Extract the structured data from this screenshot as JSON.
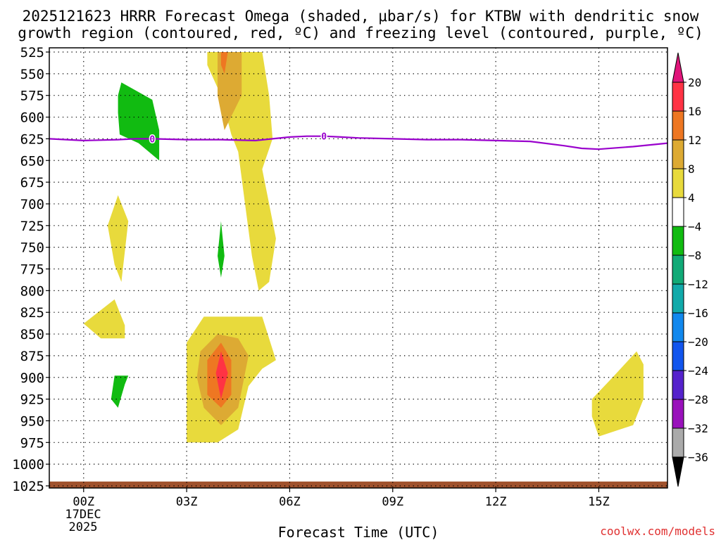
{
  "chart_data": {
    "type": "contour",
    "title_line1": "2025121623 HRRR Forecast Omega (shaded, μbar/s) for KTBW with dendritic snow",
    "title_line2": "growth region (contoured, red, ºC) and freezing level (contoured, purple, ºC)",
    "xlabel": "Forecast Time (UTC)",
    "ylabel": "",
    "credit": "coolwx.com/models",
    "y_ticks": [
      "525",
      "550",
      "575",
      "600",
      "625",
      "650",
      "675",
      "700",
      "725",
      "750",
      "775",
      "800",
      "825",
      "850",
      "875",
      "900",
      "925",
      "950",
      "975",
      "1000",
      "1025"
    ],
    "y_levels": [
      525,
      550,
      575,
      600,
      625,
      650,
      675,
      700,
      725,
      750,
      775,
      800,
      825,
      850,
      875,
      900,
      925,
      950,
      975,
      1000,
      1025
    ],
    "x_ticks": [
      "00Z",
      "03Z",
      "06Z",
      "09Z",
      "12Z",
      "15Z"
    ],
    "x_tick_hours": [
      0,
      3,
      6,
      9,
      12,
      15
    ],
    "x_start_labels": [
      "17DEC",
      "2025"
    ],
    "xlim": [
      -1,
      17
    ],
    "ylim": [
      1025,
      525
    ],
    "colorbar_labels": [
      "20",
      "16",
      "12",
      "8",
      "4",
      "−4",
      "−8",
      "−12",
      "−16",
      "−20",
      "−24",
      "−28",
      "−32",
      "−36"
    ],
    "colorbar_values": [
      20,
      16,
      12,
      8,
      4,
      -4,
      -8,
      -12,
      -16,
      -20,
      -24,
      -28,
      -32,
      -36
    ],
    "colorbar_colors": [
      "#ff3344",
      "#ee7722",
      "#ddaa33",
      "#e8da3c",
      "#ffffff",
      "#11bb11",
      "#11aa77",
      "#11aaaa",
      "#1188ee",
      "#1155ee",
      "#5522cc",
      "#9911bb",
      "#aaaaaa"
    ],
    "colorbar_top_color": "#e0157a",
    "colorbar_bottom_color": "#000000",
    "freezing_level_label": "0",
    "freezing_level_color": "#9900cc",
    "ground_color": "#a0522d",
    "freezing_level": {
      "hours": [
        -1,
        0,
        1,
        1.5,
        2,
        3,
        4,
        5,
        6,
        6.5,
        7,
        7.5,
        8,
        9,
        10,
        11,
        12,
        13,
        14,
        14.5,
        15,
        16,
        17
      ],
      "pressure": [
        625,
        627,
        626,
        625,
        625,
        626,
        626,
        627,
        623,
        622,
        622,
        623,
        624,
        625,
        626,
        626,
        627,
        628,
        633,
        636,
        637,
        634,
        630
      ]
    },
    "shaded_regions": [
      {
        "name": "omega-yellow-upper-column",
        "color": "#e8da3c",
        "value": "4 to 8",
        "points": [
          [
            3.6,
            525
          ],
          [
            5.2,
            525
          ],
          [
            5.4,
            575
          ],
          [
            5.5,
            625
          ],
          [
            5.2,
            660
          ],
          [
            5.4,
            700
          ],
          [
            5.6,
            740
          ],
          [
            5.4,
            790
          ],
          [
            5.1,
            800
          ],
          [
            4.9,
            760
          ],
          [
            4.7,
            700
          ],
          [
            4.5,
            640
          ],
          [
            4.3,
            620
          ],
          [
            4.0,
            575
          ],
          [
            3.6,
            540
          ],
          [
            3.6,
            525
          ]
        ]
      },
      {
        "name": "omega-orange-upper",
        "color": "#ddaa33",
        "value": "8 to 12",
        "points": [
          [
            3.9,
            525
          ],
          [
            4.6,
            525
          ],
          [
            4.6,
            575
          ],
          [
            4.1,
            615
          ],
          [
            3.9,
            575
          ],
          [
            3.9,
            525
          ]
        ]
      },
      {
        "name": "omega-dark-orange-upper",
        "color": "#ee7722",
        "value": "12 to 16",
        "points": [
          [
            4.0,
            525
          ],
          [
            4.2,
            525
          ],
          [
            4.1,
            550
          ],
          [
            4.0,
            540
          ],
          [
            4.0,
            525
          ]
        ]
      },
      {
        "name": "omega-green-upper",
        "color": "#11bb11",
        "value": "-4 to -8",
        "points": [
          [
            1.0,
            595
          ],
          [
            1.0,
            575
          ],
          [
            1.1,
            560
          ],
          [
            2.0,
            580
          ],
          [
            2.2,
            615
          ],
          [
            2.2,
            650
          ],
          [
            1.6,
            630
          ],
          [
            1.05,
            620
          ],
          [
            1.0,
            595
          ]
        ]
      },
      {
        "name": "omega-yellow-mid",
        "color": "#e8da3c",
        "value": "4 to 8",
        "points": [
          [
            0.7,
            725
          ],
          [
            1.0,
            690
          ],
          [
            1.3,
            720
          ],
          [
            1.1,
            790
          ],
          [
            0.9,
            770
          ],
          [
            0.7,
            725
          ]
        ]
      },
      {
        "name": "omega-green-mid",
        "color": "#11bb11",
        "value": "-4 to -8",
        "points": [
          [
            3.9,
            760
          ],
          [
            4.0,
            720
          ],
          [
            4.1,
            760
          ],
          [
            4.0,
            785
          ],
          [
            3.9,
            760
          ]
        ]
      },
      {
        "name": "omega-yellow-low-left",
        "color": "#e8da3c",
        "value": "4 to 8",
        "points": [
          [
            0.0,
            838
          ],
          [
            0.9,
            810
          ],
          [
            1.2,
            840
          ],
          [
            1.2,
            855
          ],
          [
            0.5,
            855
          ],
          [
            0.0,
            838
          ]
        ]
      },
      {
        "name": "omega-green-low",
        "color": "#11bb11",
        "value": "-4 to -8",
        "points": [
          [
            0.8,
            925
          ],
          [
            0.9,
            898
          ],
          [
            1.3,
            898
          ],
          [
            1.2,
            908
          ],
          [
            1.0,
            935
          ],
          [
            0.8,
            925
          ]
        ]
      },
      {
        "name": "omega-yellow-low-column",
        "color": "#e8da3c",
        "value": "4 to 8",
        "points": [
          [
            3.0,
            860
          ],
          [
            3.5,
            830
          ],
          [
            5.2,
            830
          ],
          [
            5.6,
            880
          ],
          [
            5.2,
            890
          ],
          [
            4.8,
            910
          ],
          [
            4.5,
            960
          ],
          [
            3.9,
            975
          ],
          [
            3.0,
            975
          ],
          [
            3.0,
            860
          ]
        ]
      },
      {
        "name": "omega-orange-low",
        "color": "#ddaa33",
        "value": "8 to 12",
        "points": [
          [
            3.4,
            870
          ],
          [
            3.9,
            850
          ],
          [
            4.5,
            855
          ],
          [
            4.8,
            875
          ],
          [
            4.5,
            935
          ],
          [
            4.0,
            955
          ],
          [
            3.5,
            935
          ],
          [
            3.3,
            900
          ],
          [
            3.4,
            870
          ]
        ]
      },
      {
        "name": "omega-dark-orange-low",
        "color": "#ee7722",
        "value": "12 to 16",
        "points": [
          [
            3.6,
            880
          ],
          [
            4.0,
            860
          ],
          [
            4.3,
            880
          ],
          [
            4.3,
            920
          ],
          [
            4.0,
            935
          ],
          [
            3.6,
            920
          ],
          [
            3.6,
            880
          ]
        ]
      },
      {
        "name": "omega-red-low",
        "color": "#ff3344",
        "value": "16 to 20",
        "points": [
          [
            3.85,
            895
          ],
          [
            4.0,
            870
          ],
          [
            4.2,
            895
          ],
          [
            4.0,
            925
          ],
          [
            3.85,
            895
          ]
        ]
      },
      {
        "name": "omega-yellow-low-right",
        "color": "#e8da3c",
        "value": "4 to 8",
        "points": [
          [
            14.8,
            925
          ],
          [
            15.4,
            900
          ],
          [
            16.1,
            870
          ],
          [
            16.3,
            885
          ],
          [
            16.3,
            925
          ],
          [
            16.0,
            955
          ],
          [
            15.0,
            968
          ],
          [
            14.8,
            945
          ],
          [
            14.8,
            925
          ]
        ]
      }
    ],
    "ground_band": {
      "pressure_top": 1020
    }
  }
}
